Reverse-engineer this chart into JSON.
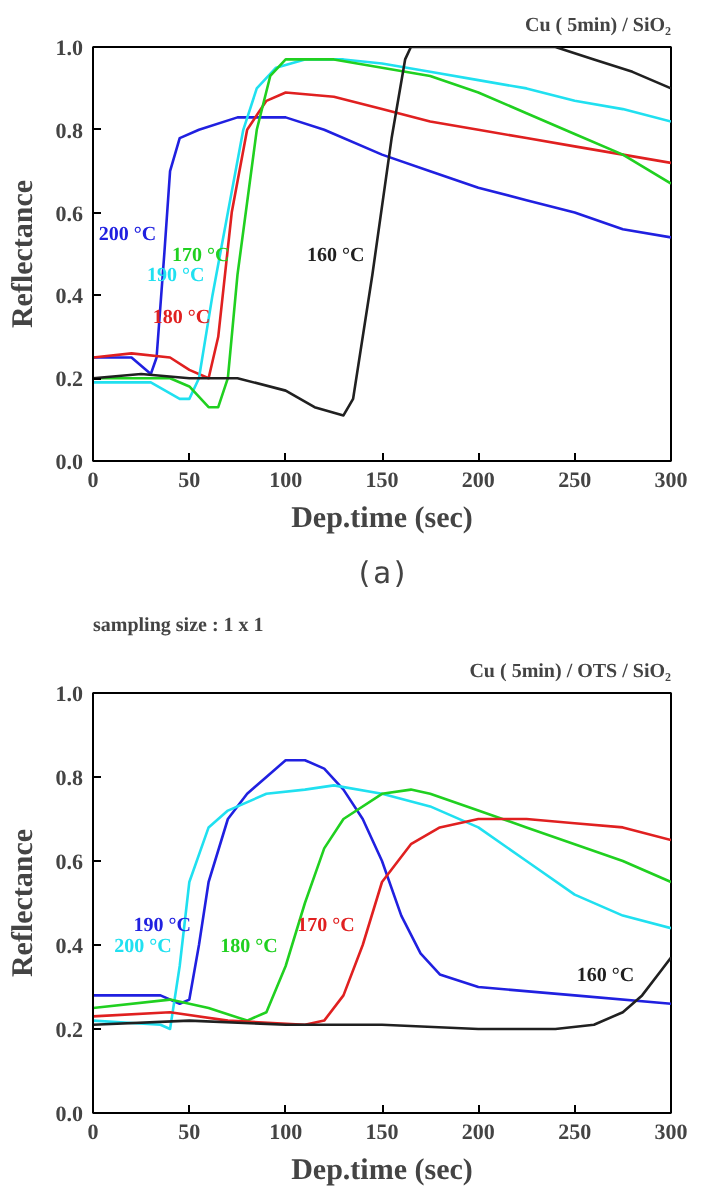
{
  "chart_data": [
    {
      "type": "line",
      "title": "Cu ( 5min) / SiO₂",
      "xlabel": "Dep.time (sec)",
      "ylabel": "Reflectance",
      "xlim": [
        0,
        300
      ],
      "ylim": [
        0,
        1.0
      ],
      "xticks": [
        0,
        50,
        100,
        150,
        200,
        250,
        300
      ],
      "yticks": [
        {
          "value": 0,
          "label": "0.0"
        },
        {
          "value": 0.2,
          "label": "0.2"
        },
        {
          "value": 0.4,
          "label": "0.4"
        },
        {
          "value": 0.6,
          "label": "0.6"
        },
        {
          "value": 0.8,
          "label": "0.8"
        },
        {
          "value": 1.0,
          "label": "1.0"
        }
      ],
      "series": [
        {
          "name": "200 °C",
          "color": "#2020e0",
          "x": [
            0,
            20,
            30,
            33,
            37,
            40,
            45,
            55,
            75,
            90,
            100,
            120,
            150,
            175,
            200,
            225,
            250,
            275,
            300
          ],
          "values": [
            0.25,
            0.25,
            0.21,
            0.25,
            0.5,
            0.7,
            0.78,
            0.8,
            0.83,
            0.83,
            0.83,
            0.8,
            0.74,
            0.7,
            0.66,
            0.63,
            0.6,
            0.56,
            0.54
          ]
        },
        {
          "name": "180 °C",
          "color": "#e02020",
          "x": [
            0,
            20,
            40,
            50,
            60,
            65,
            72,
            80,
            90,
            100,
            125,
            150,
            175,
            200,
            225,
            250,
            275,
            300
          ],
          "values": [
            0.25,
            0.26,
            0.25,
            0.22,
            0.2,
            0.3,
            0.6,
            0.8,
            0.87,
            0.89,
            0.88,
            0.85,
            0.82,
            0.8,
            0.78,
            0.76,
            0.74,
            0.72
          ]
        },
        {
          "name": "190 °C",
          "color": "#20e0f0",
          "x": [
            0,
            30,
            45,
            50,
            55,
            62,
            70,
            78,
            85,
            95,
            110,
            130,
            150,
            175,
            200,
            225,
            250,
            275,
            300
          ],
          "values": [
            0.19,
            0.19,
            0.15,
            0.15,
            0.2,
            0.4,
            0.6,
            0.8,
            0.9,
            0.95,
            0.97,
            0.97,
            0.96,
            0.94,
            0.92,
            0.9,
            0.87,
            0.85,
            0.82
          ]
        },
        {
          "name": "170 °C",
          "color": "#20d020",
          "x": [
            0,
            40,
            50,
            60,
            65,
            70,
            75,
            85,
            92,
            100,
            125,
            150,
            175,
            200,
            225,
            250,
            275,
            300
          ],
          "values": [
            0.2,
            0.2,
            0.18,
            0.13,
            0.13,
            0.2,
            0.45,
            0.8,
            0.93,
            0.97,
            0.97,
            0.95,
            0.93,
            0.89,
            0.84,
            0.79,
            0.74,
            0.67
          ]
        },
        {
          "name": "160 °C",
          "color": "#202020",
          "x": [
            0,
            25,
            50,
            75,
            100,
            115,
            130,
            135,
            145,
            155,
            162,
            165,
            240,
            260,
            280,
            300
          ],
          "values": [
            0.2,
            0.21,
            0.2,
            0.2,
            0.17,
            0.13,
            0.11,
            0.15,
            0.45,
            0.78,
            0.97,
            1.0,
            1.0,
            0.97,
            0.94,
            0.9
          ]
        }
      ],
      "annotations": [
        "(a)"
      ]
    },
    {
      "type": "line",
      "title": "Cu ( 5min) / OTS / SiO₂",
      "subtitle": "sampling size : 1 x 1",
      "xlabel": "Dep.time (sec)",
      "ylabel": "Reflectance",
      "xlim": [
        0,
        300
      ],
      "ylim": [
        0,
        1.0
      ],
      "xticks": [
        0,
        50,
        100,
        150,
        200,
        250,
        300
      ],
      "yticks": [
        {
          "value": 0,
          "label": "0.0"
        },
        {
          "value": 0.2,
          "label": "0.2"
        },
        {
          "value": 0.4,
          "label": "0.4"
        },
        {
          "value": 0.6,
          "label": "0.6"
        },
        {
          "value": 0.8,
          "label": "0.8"
        },
        {
          "value": 1.0,
          "label": "1.0"
        }
      ],
      "series": [
        {
          "name": "190 °C",
          "color": "#2020e0",
          "x": [
            0,
            35,
            45,
            50,
            55,
            60,
            70,
            80,
            90,
            100,
            110,
            120,
            130,
            140,
            150,
            160,
            170,
            180,
            200,
            250,
            300
          ],
          "values": [
            0.28,
            0.28,
            0.26,
            0.27,
            0.4,
            0.55,
            0.7,
            0.76,
            0.8,
            0.84,
            0.84,
            0.82,
            0.77,
            0.7,
            0.6,
            0.47,
            0.38,
            0.33,
            0.3,
            0.28,
            0.26
          ]
        },
        {
          "name": "200 °C",
          "color": "#20e0f0",
          "x": [
            0,
            35,
            40,
            45,
            50,
            60,
            70,
            90,
            110,
            125,
            150,
            175,
            200,
            225,
            250,
            275,
            300
          ],
          "values": [
            0.22,
            0.21,
            0.2,
            0.35,
            0.55,
            0.68,
            0.72,
            0.76,
            0.77,
            0.78,
            0.76,
            0.73,
            0.68,
            0.6,
            0.52,
            0.47,
            0.44
          ]
        },
        {
          "name": "180 °C",
          "color": "#20d020",
          "x": [
            0,
            40,
            60,
            80,
            90,
            100,
            110,
            120,
            130,
            150,
            165,
            175,
            200,
            225,
            250,
            275,
            300
          ],
          "values": [
            0.25,
            0.27,
            0.25,
            0.22,
            0.24,
            0.35,
            0.5,
            0.63,
            0.7,
            0.76,
            0.77,
            0.76,
            0.72,
            0.68,
            0.64,
            0.6,
            0.55
          ]
        },
        {
          "name": "170 °C",
          "color": "#e02020",
          "x": [
            0,
            40,
            70,
            110,
            120,
            130,
            140,
            150,
            165,
            180,
            200,
            225,
            250,
            275,
            300
          ],
          "values": [
            0.23,
            0.24,
            0.22,
            0.21,
            0.22,
            0.28,
            0.4,
            0.55,
            0.64,
            0.68,
            0.7,
            0.7,
            0.69,
            0.68,
            0.65
          ]
        },
        {
          "name": "160 °C",
          "color": "#202020",
          "x": [
            0,
            50,
            100,
            150,
            200,
            240,
            260,
            275,
            285,
            295,
            300
          ],
          "values": [
            0.21,
            0.22,
            0.21,
            0.21,
            0.2,
            0.2,
            0.21,
            0.24,
            0.28,
            0.34,
            0.37
          ]
        }
      ]
    }
  ]
}
